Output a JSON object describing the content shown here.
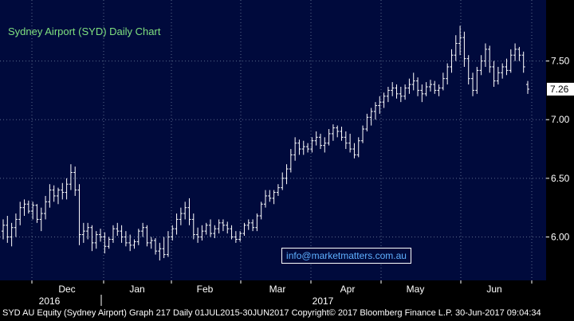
{
  "chart_data": {
    "type": "ohlc",
    "title": "Sydney Airport (SYD) Daily Chart",
    "ylim": [
      5.63,
      8.02
    ],
    "y_ticks": [
      6.0,
      6.5,
      7.0,
      7.5
    ],
    "y_tick_labels": [
      "6.00",
      "6.50",
      "7.00",
      "7.50"
    ],
    "months": [
      "Dec",
      "Jan",
      "Feb",
      "Mar",
      "Apr",
      "May",
      "Jun"
    ],
    "years": [
      "2016",
      "2017"
    ],
    "last_value": "7.26",
    "grid": true,
    "series": [
      {
        "values": [
          [
            6.05,
            6.15,
            5.98,
            6.1
          ],
          [
            6.1,
            6.18,
            5.95,
            6.0
          ],
          [
            6.0,
            6.12,
            5.92,
            6.08
          ],
          [
            6.08,
            6.2,
            6.0,
            6.15
          ],
          [
            6.15,
            6.3,
            6.1,
            6.25
          ],
          [
            6.25,
            6.32,
            6.18,
            6.28
          ],
          [
            6.28,
            6.31,
            6.2,
            6.22
          ],
          [
            6.22,
            6.3,
            6.15,
            6.27
          ],
          [
            6.27,
            6.28,
            6.12,
            6.15
          ],
          [
            6.15,
            6.25,
            6.05,
            6.2
          ],
          [
            6.2,
            6.35,
            6.15,
            6.3
          ],
          [
            6.3,
            6.45,
            6.25,
            6.4
          ],
          [
            6.4,
            6.44,
            6.3,
            6.35
          ],
          [
            6.35,
            6.42,
            6.28,
            6.4
          ],
          [
            6.4,
            6.46,
            6.32,
            6.38
          ],
          [
            6.38,
            6.5,
            6.32,
            6.45
          ],
          [
            6.45,
            6.62,
            6.4,
            6.55
          ],
          [
            6.55,
            6.6,
            6.35,
            6.4
          ],
          [
            6.4,
            6.45,
            5.93,
            6.02
          ],
          [
            6.02,
            6.12,
            5.95,
            6.05
          ],
          [
            6.05,
            6.12,
            5.98,
            6.08
          ],
          [
            6.08,
            6.1,
            5.88,
            5.95
          ],
          [
            5.95,
            6.05,
            5.9,
            6.02
          ],
          [
            6.02,
            6.07,
            5.96,
            6.0
          ],
          [
            6.0,
            6.04,
            5.86,
            5.92
          ],
          [
            5.92,
            6.0,
            5.9,
            5.98
          ],
          [
            5.98,
            6.1,
            5.95,
            6.07
          ],
          [
            6.07,
            6.12,
            6.01,
            6.05
          ],
          [
            6.05,
            6.1,
            5.95,
            6.0
          ],
          [
            6.0,
            6.05,
            5.92,
            5.95
          ],
          [
            5.95,
            6.02,
            5.88,
            5.93
          ],
          [
            5.93,
            5.98,
            5.9,
            5.96
          ],
          [
            5.96,
            6.07,
            5.93,
            6.05
          ],
          [
            6.05,
            6.12,
            6.0,
            6.08
          ],
          [
            6.08,
            6.1,
            5.92,
            5.95
          ],
          [
            5.95,
            6.0,
            5.9,
            5.97
          ],
          [
            5.97,
            5.99,
            5.85,
            5.88
          ],
          [
            5.88,
            5.95,
            5.8,
            5.9
          ],
          [
            5.9,
            6.0,
            5.82,
            5.85
          ],
          [
            5.85,
            6.05,
            5.83,
            6.0
          ],
          [
            6.0,
            6.1,
            5.97,
            6.07
          ],
          [
            6.07,
            6.2,
            6.02,
            6.15
          ],
          [
            6.15,
            6.25,
            6.1,
            6.2
          ],
          [
            6.2,
            6.3,
            6.15,
            6.25
          ],
          [
            6.25,
            6.33,
            6.1,
            6.15
          ],
          [
            6.15,
            6.2,
            5.98,
            6.02
          ],
          [
            6.02,
            6.08,
            5.95,
            6.0
          ],
          [
            6.0,
            6.1,
            5.97,
            6.05
          ],
          [
            6.05,
            6.12,
            6.02,
            6.1
          ],
          [
            6.1,
            6.15,
            6.0,
            6.03
          ],
          [
            6.03,
            6.1,
            5.99,
            6.07
          ],
          [
            6.07,
            6.15,
            6.03,
            6.12
          ],
          [
            6.12,
            6.15,
            6.05,
            6.1
          ],
          [
            6.1,
            6.13,
            6.03,
            6.07
          ],
          [
            6.07,
            6.1,
            5.98,
            6.0
          ],
          [
            6.0,
            6.05,
            5.95,
            5.98
          ],
          [
            5.98,
            6.05,
            5.96,
            6.03
          ],
          [
            6.03,
            6.12,
            6.01,
            6.1
          ],
          [
            6.1,
            6.15,
            6.06,
            6.12
          ],
          [
            6.12,
            6.15,
            6.05,
            6.08
          ],
          [
            6.08,
            6.2,
            6.05,
            6.18
          ],
          [
            6.18,
            6.3,
            6.15,
            6.28
          ],
          [
            6.28,
            6.4,
            6.25,
            6.35
          ],
          [
            6.35,
            6.4,
            6.3,
            6.33
          ],
          [
            6.33,
            6.4,
            6.28,
            6.38
          ],
          [
            6.38,
            6.45,
            6.35,
            6.42
          ],
          [
            6.42,
            6.55,
            6.4,
            6.5
          ],
          [
            6.5,
            6.62,
            6.45,
            6.58
          ],
          [
            6.58,
            6.75,
            6.55,
            6.7
          ],
          [
            6.7,
            6.85,
            6.65,
            6.8
          ],
          [
            6.8,
            6.83,
            6.7,
            6.75
          ],
          [
            6.75,
            6.82,
            6.7,
            6.77
          ],
          [
            6.77,
            6.8,
            6.72,
            6.75
          ],
          [
            6.75,
            6.85,
            6.72,
            6.82
          ],
          [
            6.82,
            6.9,
            6.78,
            6.85
          ],
          [
            6.85,
            6.88,
            6.75,
            6.78
          ],
          [
            6.78,
            6.85,
            6.72,
            6.8
          ],
          [
            6.8,
            6.92,
            6.78,
            6.88
          ],
          [
            6.88,
            6.96,
            6.82,
            6.93
          ],
          [
            6.93,
            6.95,
            6.85,
            6.9
          ],
          [
            6.9,
            6.94,
            6.82,
            6.85
          ],
          [
            6.85,
            6.9,
            6.75,
            6.8
          ],
          [
            6.8,
            6.88,
            6.72,
            6.75
          ],
          [
            6.75,
            6.8,
            6.67,
            6.7
          ],
          [
            6.7,
            6.85,
            6.68,
            6.82
          ],
          [
            6.82,
            6.95,
            6.8,
            6.92
          ],
          [
            6.92,
            7.05,
            6.9,
            7.02
          ],
          [
            7.02,
            7.1,
            6.95,
            7.07
          ],
          [
            7.07,
            7.15,
            7.0,
            7.12
          ],
          [
            7.12,
            7.2,
            7.05,
            7.15
          ],
          [
            7.15,
            7.23,
            7.1,
            7.2
          ],
          [
            7.2,
            7.28,
            7.15,
            7.25
          ],
          [
            7.25,
            7.32,
            7.2,
            7.27
          ],
          [
            7.27,
            7.3,
            7.18,
            7.22
          ],
          [
            7.22,
            7.28,
            7.15,
            7.2
          ],
          [
            7.2,
            7.3,
            7.17,
            7.27
          ],
          [
            7.27,
            7.35,
            7.22,
            7.3
          ],
          [
            7.3,
            7.4,
            7.25,
            7.33
          ],
          [
            7.33,
            7.36,
            7.2,
            7.25
          ],
          [
            7.25,
            7.3,
            7.15,
            7.22
          ],
          [
            7.22,
            7.32,
            7.2,
            7.28
          ],
          [
            7.28,
            7.34,
            7.24,
            7.3
          ],
          [
            7.3,
            7.33,
            7.22,
            7.25
          ],
          [
            7.25,
            7.3,
            7.2,
            7.27
          ],
          [
            7.27,
            7.4,
            7.25,
            7.35
          ],
          [
            7.35,
            7.48,
            7.3,
            7.45
          ],
          [
            7.45,
            7.6,
            7.4,
            7.55
          ],
          [
            7.55,
            7.72,
            7.5,
            7.65
          ],
          [
            7.65,
            7.8,
            7.55,
            7.7
          ],
          [
            7.7,
            7.75,
            7.45,
            7.52
          ],
          [
            7.52,
            7.55,
            7.3,
            7.35
          ],
          [
            7.35,
            7.4,
            7.2,
            7.25
          ],
          [
            7.25,
            7.45,
            7.22,
            7.42
          ],
          [
            7.42,
            7.55,
            7.38,
            7.5
          ],
          [
            7.5,
            7.65,
            7.45,
            7.6
          ],
          [
            7.6,
            7.63,
            7.4,
            7.45
          ],
          [
            7.45,
            7.5,
            7.28,
            7.33
          ],
          [
            7.33,
            7.45,
            7.3,
            7.4
          ],
          [
            7.4,
            7.48,
            7.35,
            7.45
          ],
          [
            7.45,
            7.52,
            7.38,
            7.42
          ],
          [
            7.42,
            7.6,
            7.4,
            7.55
          ],
          [
            7.55,
            7.65,
            7.5,
            7.6
          ],
          [
            7.6,
            7.62,
            7.5,
            7.55
          ],
          [
            7.55,
            7.58,
            7.4,
            7.45
          ],
          [
            7.3,
            7.33,
            7.22,
            7.26
          ]
        ]
      }
    ]
  },
  "watermark": "info@marketmatters.com.au",
  "footer": "SYD AU Equity (Sydney Airport) Graph 217  Daily 01JUL2015-30JUN2017  Copyright© 2017 Bloomberg Finance L.P.   30-Jun-2017 09:04:34",
  "colors": {
    "plot_bg": "#000a3c",
    "bars": "#ffffff",
    "grid": "#5a6a8a",
    "title": "#7fe07f",
    "link": "#5fb0ff"
  }
}
